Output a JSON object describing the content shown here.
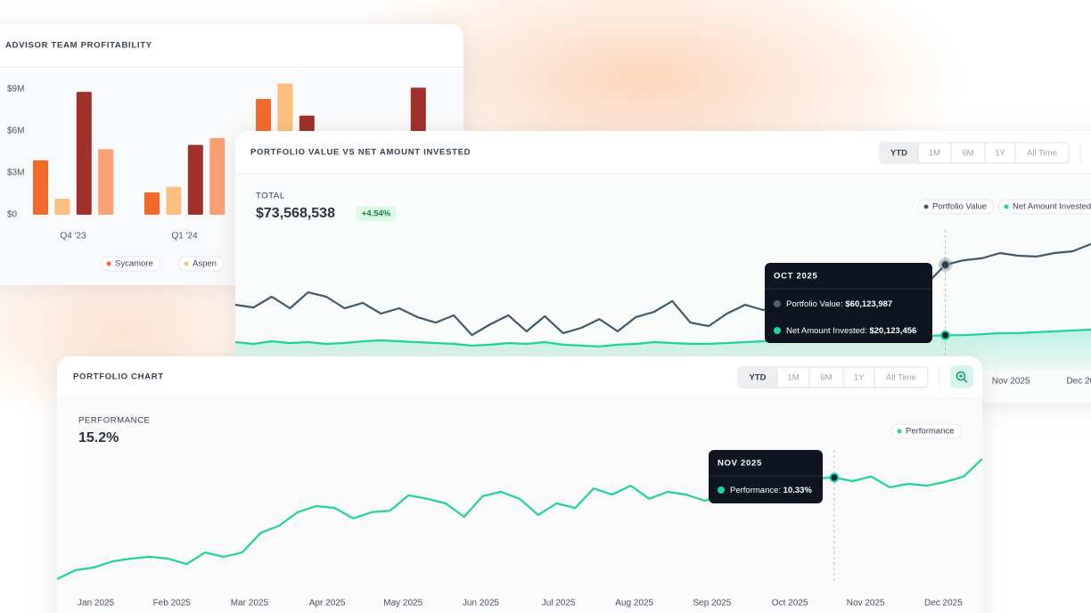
{
  "advisor_card": {
    "title": "ADVISOR TEAM PROFITABILITY",
    "chart": {
      "type": "bar",
      "categories": [
        "Q4 '23",
        "Q1 '24",
        null,
        null
      ],
      "series": [
        {
          "name": "Sycamore",
          "color": "#f26a2a",
          "values": [
            3900000,
            1600000,
            8300000,
            null
          ]
        },
        {
          "name": "Aspen",
          "color": "#fbbf80",
          "values": [
            1150000,
            2000000,
            9400000,
            null
          ]
        },
        {
          "color": "#a0302a",
          "values": [
            8800000,
            5000000,
            7100000,
            9100000
          ]
        },
        {
          "color": "#fd9f75",
          "values": [
            4700000,
            5500000,
            null,
            null
          ]
        }
      ],
      "ylim": [
        0,
        10000000
      ],
      "yticks": [
        {
          "value": 0,
          "label": "$0"
        },
        {
          "value": 3000000,
          "label": "$3M"
        },
        {
          "value": 6000000,
          "label": "$6M"
        },
        {
          "value": 9000000,
          "label": "$9M"
        }
      ]
    }
  },
  "portfolio_value_card": {
    "title": "PORTFOLIO VALUE VS NET AMOUNT INVESTED",
    "tabs": [
      "YTD",
      "1M",
      "6M",
      "1Y",
      "All Time"
    ],
    "active_tab": 0,
    "total_label": "TOTAL",
    "total": "$73,568,538",
    "change": "+4.54%",
    "chart": {
      "type": "line",
      "series": [
        {
          "name": "Portfolio Value",
          "color": "#3f5a6a",
          "values": [
            37400000,
            35900000,
            42000000,
            35400000,
            44500000,
            42000000,
            35400000,
            38500000,
            32400000,
            35400000,
            30400000,
            27300000,
            31400000,
            20200000,
            26300000,
            31400000,
            22300000,
            30900000,
            21300000,
            24300000,
            29300000,
            22300000,
            30400000,
            33400000,
            39500000,
            27300000,
            25300000,
            32400000,
            37400000,
            34400000,
            38500000,
            35900000,
            39500000,
            37400000,
            41000000,
            38500000,
            42500000,
            41000000,
            49600000,
            60123987,
            62700000,
            63800000,
            66800000,
            65300000,
            64800000,
            66800000,
            67800000,
            71900000
          ]
        },
        {
          "name": "Net Amount Invested",
          "color": "#22d3a0",
          "values": [
            16200000,
            15200000,
            16700000,
            15700000,
            16200000,
            15200000,
            15700000,
            16700000,
            17200000,
            16700000,
            16200000,
            15700000,
            15200000,
            14200000,
            14700000,
            15700000,
            15200000,
            16200000,
            14700000,
            14200000,
            13700000,
            14700000,
            15200000,
            16200000,
            15700000,
            15200000,
            15200000,
            15700000,
            16200000,
            16700000,
            16700000,
            17200000,
            17200000,
            17700000,
            18200000,
            18200000,
            18700000,
            19200000,
            19700000,
            20123456,
            20200000,
            20700000,
            21300000,
            21300000,
            21800000,
            22300000,
            22800000,
            23300000
          ]
        }
      ],
      "xlim": [
        0,
        47
      ],
      "xticks": [
        {
          "value": 42.6,
          "label": "Nov 2025"
        },
        {
          "value": 46.7,
          "label": "Dec 2025"
        }
      ],
      "ylim": [
        0,
        84000000
      ]
    },
    "tooltip": {
      "title": "OCT 2025",
      "items": [
        {
          "label": "Portfolio Value: ",
          "value": "$60,123,987"
        },
        {
          "label": "Net Amount Invested: ",
          "value": "$20,123,456"
        }
      ]
    }
  },
  "portfolio_chart_card": {
    "title": "PORTFOLIO CHART",
    "tabs": [
      "YTD",
      "1M",
      "6M",
      "1Y",
      "All Time"
    ],
    "active_tab": 0,
    "metric_label": "PERFORMANCE",
    "metric": "15.2%",
    "chart": {
      "type": "line",
      "series": [
        {
          "name": "Performance",
          "color": "#1fd39c",
          "values": [
            -16.1,
            -13.8,
            -13.1,
            -11.5,
            -10.8,
            -10.3,
            -10.8,
            -12.2,
            -9.2,
            -10.3,
            -9.2,
            -4.1,
            -2.2,
            1.3,
            2.9,
            2.4,
            -0.3,
            1.3,
            1.7,
            5.7,
            4.8,
            3.6,
            0.1,
            5.5,
            6.6,
            4.8,
            0.6,
            3.6,
            2.4,
            7.5,
            5.9,
            8.2,
            4.8,
            6.6,
            5.9,
            4.3,
            5.9,
            7.1,
            8.2,
            9.4,
            9.9,
            10.1,
            10.33,
            9.4,
            10.6,
            7.8,
            8.7,
            8.2,
            9.2,
            10.6,
            15.2
          ]
        }
      ],
      "xlim": [
        0,
        50
      ],
      "xticks": [
        {
          "value": 2.1,
          "label": "Jan 2025"
        },
        {
          "value": 6.2,
          "label": "Feb 2025"
        },
        {
          "value": 10.4,
          "label": "Mar 2025"
        },
        {
          "value": 14.6,
          "label": "Apr 2025"
        },
        {
          "value": 18.7,
          "label": "May 2025"
        },
        {
          "value": 22.9,
          "label": "Jun 2025"
        },
        {
          "value": 27.1,
          "label": "Jul 2025"
        },
        {
          "value": 31.2,
          "label": "Aug 2025"
        },
        {
          "value": 35.4,
          "label": "Sep 2025"
        },
        {
          "value": 39.6,
          "label": "Oct 2025"
        },
        {
          "value": 43.7,
          "label": "Nov 2025"
        },
        {
          "value": 47.9,
          "label": "Dec 2025"
        }
      ],
      "ylim": [
        -18.5,
        25.5
      ]
    },
    "tooltip": {
      "title": "NOV 2025",
      "items": [
        {
          "label": "Performance: ",
          "value": "10.33%"
        }
      ]
    }
  }
}
